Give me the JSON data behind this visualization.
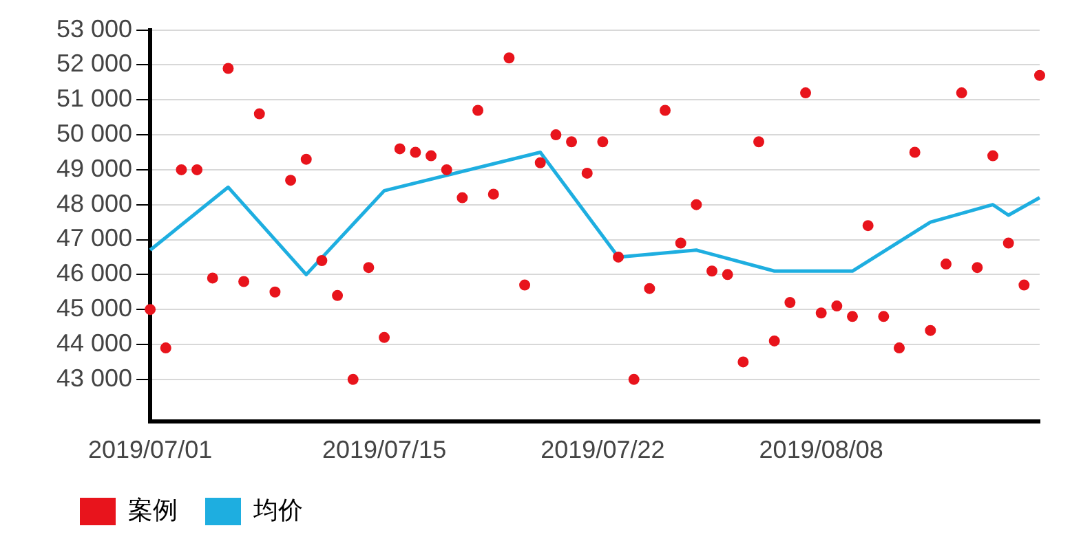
{
  "chart_data": {
    "type": "scatter",
    "categories": [
      "2019/07/01",
      null,
      null,
      null,
      null,
      null,
      null,
      null,
      null,
      null,
      null,
      null,
      null,
      null,
      null,
      "2019/07/15",
      null,
      null,
      null,
      null,
      null,
      null,
      null,
      null,
      null,
      null,
      null,
      null,
      null,
      "2019/07/22",
      null,
      null,
      null,
      null,
      null,
      null,
      null,
      null,
      null,
      null,
      null,
      null,
      null,
      "2019/08/08",
      null,
      null,
      null,
      null,
      null,
      null,
      null,
      null,
      null,
      null,
      null,
      null,
      null,
      null
    ],
    "series": [
      {
        "name": "案例",
        "marker": "circle",
        "color": "#e8141c",
        "values": [
          45000,
          43900,
          49000,
          49000,
          45900,
          51900,
          45800,
          50600,
          45500,
          48700,
          49300,
          46400,
          45400,
          43000,
          46200,
          44200,
          49600,
          49500,
          49400,
          49000,
          48200,
          50700,
          48300,
          52200,
          45700,
          49200,
          50000,
          49800,
          48900,
          49800,
          46500,
          43000,
          45600,
          50700,
          46900,
          48000,
          46100,
          46000,
          43500,
          49800,
          44100,
          45200,
          51200,
          44900,
          45100,
          44800,
          47400,
          44800,
          43900,
          49500,
          44400,
          46300,
          51200,
          46200,
          49400,
          46900,
          45700,
          51700
        ]
      },
      {
        "name": "均价",
        "type": "line",
        "marker": "none",
        "color": "#1eaee0",
        "values": [
          46700,
          null,
          null,
          null,
          null,
          48500,
          null,
          null,
          null,
          null,
          46000,
          null,
          null,
          null,
          null,
          48400,
          null,
          null,
          null,
          null,
          null,
          null,
          null,
          null,
          null,
          49500,
          null,
          null,
          null,
          null,
          46500,
          null,
          null,
          null,
          null,
          46700,
          null,
          null,
          null,
          null,
          46100,
          null,
          null,
          null,
          null,
          46100,
          null,
          null,
          null,
          null,
          47500,
          null,
          null,
          null,
          48000,
          47700,
          null,
          48200
        ]
      }
    ],
    "ylim": [
      41800,
      53000
    ],
    "yticks": [
      {
        "value": 43000,
        "label": "43 000"
      },
      {
        "value": 44000,
        "label": "44 000"
      },
      {
        "value": 45000,
        "label": "45 000"
      },
      {
        "value": 46000,
        "label": "46 000"
      },
      {
        "value": 47000,
        "label": "47 000"
      },
      {
        "value": 48000,
        "label": "48 000"
      },
      {
        "value": 49000,
        "label": "49 000"
      },
      {
        "value": 50000,
        "label": "50 000"
      },
      {
        "value": 51000,
        "label": "51 000"
      },
      {
        "value": 52000,
        "label": "52 000"
      },
      {
        "value": 53000,
        "label": "53 000"
      }
    ],
    "grid": "y",
    "legend": "bottom left",
    "line_style": "solid"
  }
}
